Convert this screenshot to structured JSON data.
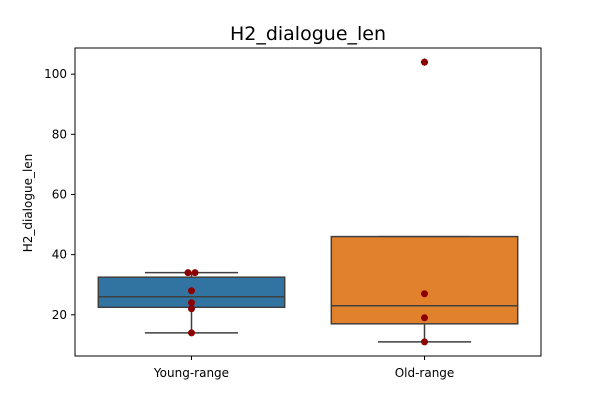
{
  "chart_data": {
    "type": "boxplot",
    "title": "H2_dialogue_len",
    "xlabel": "",
    "ylabel": "H2_dialogue_len",
    "categories": [
      "Young-range",
      "Old-range"
    ],
    "ylim": [
      6.3,
      108.7
    ],
    "yticks": [
      20,
      40,
      60,
      80,
      100
    ],
    "grid": false,
    "legend": "none",
    "boxes": [
      {
        "name": "Young-range",
        "color": "#3274a1",
        "whisker_low": 14,
        "q1": 22.5,
        "median": 26,
        "q3": 32.5,
        "whisker_high": 34,
        "outliers": []
      },
      {
        "name": "Old-range",
        "color": "#e1812c",
        "whisker_low": 11,
        "q1": 17,
        "median": 23,
        "q3": 46,
        "whisker_high": 46,
        "outliers": [
          104
        ]
      }
    ],
    "points": [
      {
        "category": "Young-range",
        "values": [
          14,
          22,
          24,
          28,
          34,
          34
        ]
      },
      {
        "category": "Old-range",
        "values": [
          11,
          19,
          27,
          104
        ]
      }
    ],
    "point_color": "#8b0000",
    "line_color": "#3f3f3f"
  }
}
